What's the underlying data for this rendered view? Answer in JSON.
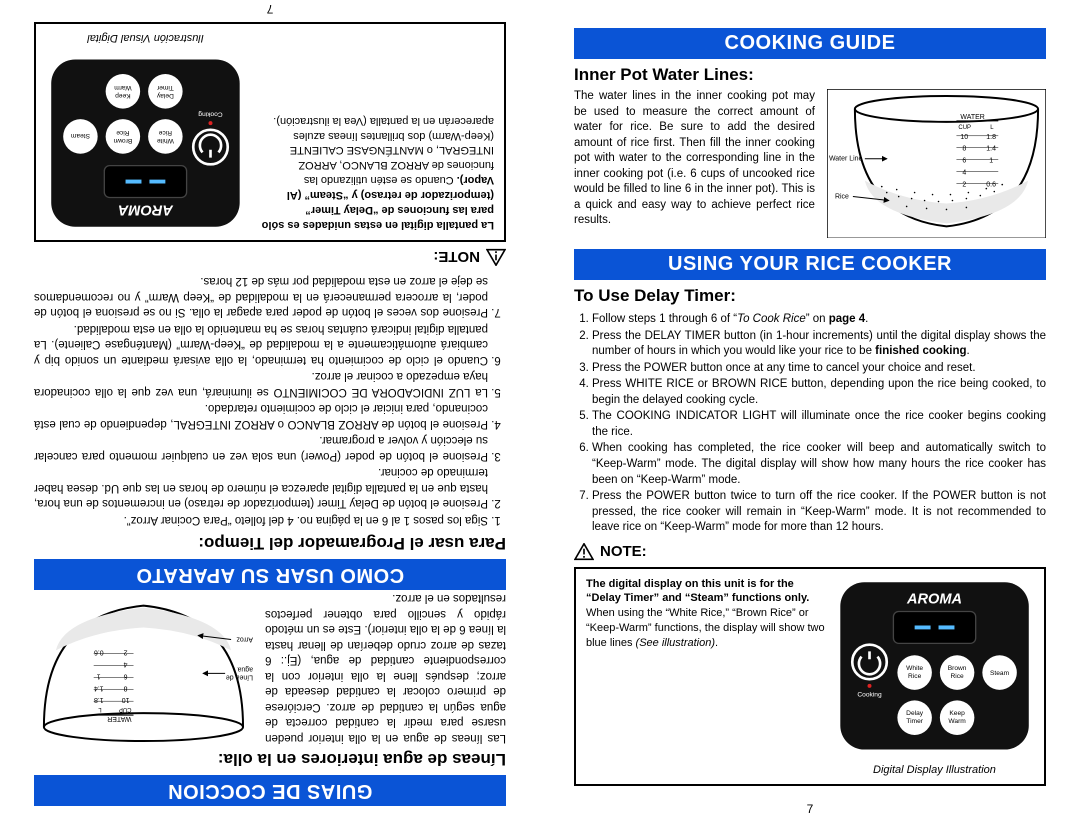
{
  "colors": {
    "header_bg": "#0a54d6",
    "header_text": "#ffffff",
    "text": "#000000",
    "panel_bg": "#111111",
    "panel_btn": "#ffffff",
    "cooking_dot": "#d22",
    "water": "#d8d8d8",
    "rice": "#e9e9e9"
  },
  "english": {
    "cooking_guide": "COOKING GUIDE",
    "inner_pot_heading": "Inner Pot Water Lines:",
    "inner_pot_text": "The water lines in the inner cooking pot may be used to measure the correct amount of water for rice. Be sure to add the desired amount of rice first. Then fill the inner cooking pot with water to the corresponding line in the inner cooking pot (i.e. 6 cups of uncooked rice would be filled to line 6 in the inner pot). This is a quick and easy way to achieve perfect rice results.",
    "using_cooker": "USING YOUR RICE COOKER",
    "delay_heading": "To Use Delay Timer:",
    "steps": [
      "Follow steps 1 through 6 of “<i>To Cook Rice</i>” on <b>page 4</b>.",
      "Press the DELAY TIMER button (in 1-hour increments) until the digital display shows the number of hours in which you would like your rice to be <b>finished cooking</b>.",
      "Press the POWER button once at any time to cancel your choice and reset.",
      "Press WHITE RICE or BROWN RICE button, depending upon the rice being cooked, to begin the delayed cooking cycle.",
      "The COOKING INDICATOR LIGHT will illuminate once the rice cooker begins cooking the rice.",
      "When cooking has completed, the rice cooker will beep and automatically switch to “Keep-Warm” mode. The digital display will show how many hours the rice cooker has been on “Keep-Warm” mode.",
      "Press the POWER button twice to turn off the rice cooker. If the POWER button is not pressed, the rice cooker will remain in “Keep-Warm” mode. It is not recommended to leave rice on “Keep-Warm” mode for more than 12 hours."
    ],
    "note_label": "NOTE:",
    "note_text_1": "The digital display on this unit is for the “Delay Timer” and “Steam” functions only.",
    "note_text_2": "When using the “White Rice,” “Brown Rice” or “Keep-Warm” functions, the display will show two blue lines ",
    "note_text_2_tail": "(See illustration)",
    "note_text_2_end": ".",
    "caption": "Digital Display Illustration",
    "page": "7",
    "pot": {
      "water_label": "WATER",
      "cup": "CUP",
      "l": "L",
      "cups": [
        "10",
        "8",
        "6",
        "4",
        "2"
      ],
      "liters": [
        "1.8",
        "1.4",
        "1",
        "0.6"
      ],
      "waterline": "Water Line",
      "rice": "Rice"
    },
    "panel": {
      "brand": "AROMA",
      "cooking": "Cooking",
      "btns_row1": [
        "White\nRice",
        "Brown\nRice",
        "Steam"
      ],
      "btns_row2": [
        "Delay\nTimer",
        "Keep\nWarm"
      ]
    }
  },
  "spanish": {
    "guias": "GUIAS DE COCCION",
    "lineas_heading": "Líneas de agua interiores en la olla:",
    "lineas_text": "Las líneas de agua en la olla interior pueden usarse para medir la cantidad correcta de agua según la cantidad de arroz. Cerciórese de primero colocar la cantidad deseada de arroz; después llene la olla interior con la correspondiente cantidad de agua, (Ej.: 6 tazas de arroz crudo deberían de llenar hasta la línea 6 de la olla interior). Este es un método rápido y sencillo para obtener perfectos resultados en el arroz.",
    "como_usar": "COMO USAR SU APARATO",
    "programador_heading": "Para usar el Programador del Tiempo:",
    "steps": [
      "Siga los pasos 1 al 6 en la página no. 4 del folleto “Para Cocinar Arroz”.",
      "Presione el botón de Delay Timer (temporizador de retraso) en incrementos de una hora, hasta que en la pantalla digital aparezca el número de horas en las que Ud. desea haber terminado de cocinar.",
      "Presione el botón de poder (Power) una sola vez en cualquier momento para cancelar su elección y volver a programar.",
      "Presione el botón de ARROZ BLANCO o ARROZ INTEGRAL, dependiendo de cual está cocinando, para iniciar el ciclo de cocimiento retardado.",
      "La LUZ INDICADORA DE COCIMIENTO se iluminará, una vez que la olla cocinadora haya empezado a cocinar el arroz.",
      "Cuando el ciclo de cocimiento ha terminado, la olla avisará mediante un sonido bip y cambiará automáticamente a la modalidad de “Keep-Warm” (Manténgase Caliente). La pantalla digital indicará cuántas horas se ha mantenido la olla en esta modalidad.",
      "Presione dos veces el botón de poder para apagar la olla. Si no se presiona el botón de poder, la arrocera permanecerá en la modalidad de “Keep Warm” y no recomendamos se deje el arroz en esta modalidad por más de 12 horas."
    ],
    "note_label": "NOTE:",
    "note_text_1": "La pantalla digital en estas unidades es sólo para las funciones de “Delay Timer” (temporizador de retraso) y “Steam” (Al Vapor).",
    "note_text_2": "Cuando se estén utilizando las funciones de ARROZ BLANCO, ARROZ INTEGRAL, o MANTÉNGASE CALIENTE (Keep-Warm) dos brillantes líneas azules aparecerán en la pantalla (Vea la ilustración).",
    "caption": "Ilustración Visual Digital",
    "page": "7",
    "pot": {
      "water_label": "WATER",
      "cup": "CUP",
      "l": "L",
      "cups": [
        "10",
        "8",
        "6",
        "4",
        "2"
      ],
      "liters": [
        "1.8",
        "1.4",
        "1",
        "0.6"
      ],
      "waterline": "Línea de agua",
      "rice": "Arroz"
    }
  }
}
